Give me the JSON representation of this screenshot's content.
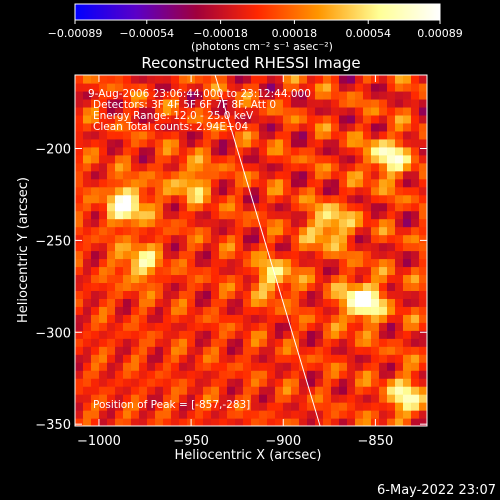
{
  "chart_data": {
    "type": "heatmap",
    "title": "Reconstructed RHESSI Image",
    "xlabel": "Heliocentric X (arcsec)",
    "ylabel": "Heliocentric Y (arcsec)",
    "xlim": [
      -1013,
      -822
    ],
    "ylim": [
      -351,
      -160
    ],
    "x_ticks": [
      -1000,
      -950,
      -900,
      -850
    ],
    "x_tick_labels": [
      "−1000",
      "−950",
      "−900",
      "−850"
    ],
    "y_ticks": [
      -200,
      -250,
      -300,
      -350
    ],
    "y_tick_labels": [
      "−200",
      "−250",
      "−300",
      "−350"
    ],
    "grid": false,
    "colorbar": {
      "range": [
        -0.00089,
        0.00089
      ],
      "ticks": [
        -0.00089,
        -0.00054,
        -0.00018,
        0.00018,
        0.00054,
        0.00089
      ],
      "tick_labels": [
        "−0.00089",
        "−0.00054",
        "−0.00018",
        "0.00018",
        "0.00054",
        "0.00089"
      ],
      "units_label": "(photons cm⁻² s⁻¹ asec⁻²)",
      "colors": [
        "#0000ff",
        "#5a00c8",
        "#a0003c",
        "#ff2800",
        "#ff9600",
        "#ffff96",
        "#ffffff"
      ]
    },
    "annotations": {
      "time_range": "9-Aug-2006 23:06:44.000 to 23:12:44.000",
      "detectors": "Detectors: 3F 4F 5F 6F 7F 8F, Att 0",
      "energy_range": "Energy Range: 12.0 - 25.0 keV",
      "clean": "Clean     Total counts: 2.94E+04",
      "peak": "Position of Peak = [-857,-283]"
    },
    "peak_position": [
      -857,
      -283
    ],
    "limb_line": [
      [
        -937,
        -160
      ],
      [
        -880,
        -351
      ]
    ],
    "bright_sources": [
      {
        "x": -857,
        "y": -283,
        "level": 0.00089
      },
      {
        "x": -985,
        "y": -230,
        "level": 0.0008
      },
      {
        "x": -843,
        "y": -205,
        "level": 0.00068
      },
      {
        "x": -875,
        "y": -242,
        "level": 0.00062
      },
      {
        "x": -905,
        "y": -270,
        "level": 0.0005
      },
      {
        "x": -978,
        "y": -262,
        "level": 0.00055
      },
      {
        "x": -950,
        "y": -218,
        "level": 0.00045
      },
      {
        "x": -833,
        "y": -335,
        "level": 0.0006
      }
    ]
  },
  "footer": {
    "date": "6-May-2022 23:07"
  }
}
